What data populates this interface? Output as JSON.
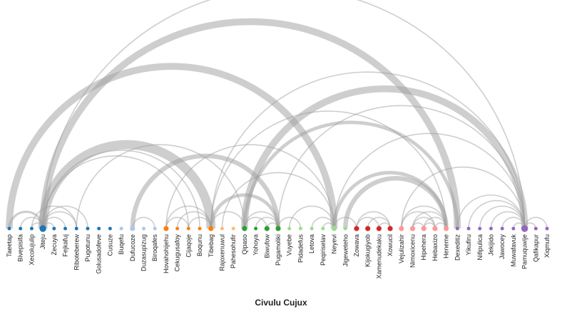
{
  "caption": "Civulu Cujux",
  "colors": {
    "link": "#9e9e9e",
    "group_blue": "#1f77b4",
    "group_lightblue": "#aec7e8",
    "group_orange": "#ff7f0e",
    "group_peach": "#ffbb78",
    "group_green": "#2ca02c",
    "group_lightgreen": "#98df8a",
    "group_red": "#d62728",
    "group_pink": "#ff9896",
    "group_purple": "#9467bd"
  },
  "nodes": [
    {
      "label": "Taeetap",
      "color": "group_blue",
      "size": 1
    },
    {
      "label": "Bivepisifa",
      "color": "group_blue",
      "size": 1
    },
    {
      "label": "Xecolujulip",
      "color": "group_blue",
      "size": 1
    },
    {
      "label": "Jiteju",
      "color": "group_blue",
      "size": 3
    },
    {
      "label": "Zecuya",
      "color": "group_blue",
      "size": 1
    },
    {
      "label": "Fejkafuj",
      "color": "group_blue",
      "size": 1
    },
    {
      "label": "Riboteberew",
      "color": "group_blue",
      "size": 1
    },
    {
      "label": "Pugotunu",
      "color": "group_blue",
      "size": 1
    },
    {
      "label": "Golusadofeve",
      "color": "group_blue",
      "size": 1
    },
    {
      "label": "Cusuze",
      "color": "group_blue",
      "size": 1
    },
    {
      "label": "Buqefu",
      "color": "group_lightblue",
      "size": 1
    },
    {
      "label": "Dufucoze",
      "color": "group_lightblue",
      "size": 2
    },
    {
      "label": "Duzasupizug",
      "color": "group_lightblue",
      "size": 1
    },
    {
      "label": "Biroqafes",
      "color": "group_lightblue",
      "size": 1
    },
    {
      "label": "Hovahohijehu",
      "color": "group_orange",
      "size": 2
    },
    {
      "label": "Cekugusafoy",
      "color": "group_orange",
      "size": 1
    },
    {
      "label": "Cijaqoje",
      "color": "group_orange",
      "size": 1
    },
    {
      "label": "Boqunu",
      "color": "group_orange",
      "size": 1
    },
    {
      "label": "Tibebag",
      "color": "group_orange",
      "size": 2
    },
    {
      "label": "Rajoxenuwul",
      "color": "group_peach",
      "size": 1
    },
    {
      "label": "Pahesohufir",
      "color": "group_peach",
      "size": 1
    },
    {
      "label": "Qipaso",
      "color": "group_green",
      "size": 2
    },
    {
      "label": "Yohoya",
      "color": "group_green",
      "size": 1
    },
    {
      "label": "Biwufow",
      "color": "group_green",
      "size": 2
    },
    {
      "label": "Pugamoliki",
      "color": "group_green",
      "size": 2
    },
    {
      "label": "Vuyebe",
      "color": "group_lightgreen",
      "size": 1
    },
    {
      "label": "Pidadefus",
      "color": "group_lightgreen",
      "size": 1
    },
    {
      "label": "Letova",
      "color": "group_lightgreen",
      "size": 1
    },
    {
      "label": "Peqiriselav",
      "color": "group_lightgreen",
      "size": 1
    },
    {
      "label": "Neyevi",
      "color": "group_lightgreen",
      "size": 2
    },
    {
      "label": "Jigeweteho",
      "color": "group_lightgreen",
      "size": 1
    },
    {
      "label": "Zowava",
      "color": "group_red",
      "size": 2
    },
    {
      "label": "Kijokugiyob",
      "color": "group_red",
      "size": 2
    },
    {
      "label": "Xamenudekaku",
      "color": "group_red",
      "size": 2
    },
    {
      "label": "Xowucil",
      "color": "group_red",
      "size": 2
    },
    {
      "label": "Vejulizahir",
      "color": "group_pink",
      "size": 2
    },
    {
      "label": "Nimoxicenu",
      "color": "group_pink",
      "size": 2
    },
    {
      "label": "Hipehera",
      "color": "group_pink",
      "size": 2
    },
    {
      "label": "Hebaxizo",
      "color": "group_pink",
      "size": 2
    },
    {
      "label": "Heneme",
      "color": "group_pink",
      "size": 2
    },
    {
      "label": "Dexeditiz",
      "color": "group_purple",
      "size": 1
    },
    {
      "label": "Yikufiru",
      "color": "group_purple",
      "size": 1
    },
    {
      "label": "Nifipulica",
      "color": "group_purple",
      "size": 1
    },
    {
      "label": "Jekijido",
      "color": "group_purple",
      "size": 1
    },
    {
      "label": "Jawocey",
      "color": "group_purple",
      "size": 1
    },
    {
      "label": "Muwafavuk",
      "color": "group_purple",
      "size": 1
    },
    {
      "label": "Pamuquwije",
      "color": "group_purple",
      "size": 3
    },
    {
      "label": "Qafikapur",
      "color": "group_purple",
      "size": 1
    },
    {
      "label": "Xiqmufu",
      "color": "group_purple",
      "size": 1
    }
  ],
  "links": [
    {
      "source": 3,
      "target": 46,
      "value": 1
    },
    {
      "source": 3,
      "target": 40,
      "value": 6
    },
    {
      "source": 0,
      "target": 29,
      "value": 6
    },
    {
      "source": 6,
      "target": 21,
      "value": 1
    },
    {
      "source": 3,
      "target": 18,
      "value": 8
    },
    {
      "source": 3,
      "target": 16,
      "value": 1
    },
    {
      "source": 3,
      "target": 17,
      "value": 1
    },
    {
      "source": 0,
      "target": 3,
      "value": 2
    },
    {
      "source": 1,
      "target": 3,
      "value": 1
    },
    {
      "source": 2,
      "target": 3,
      "value": 1
    },
    {
      "source": 3,
      "target": 4,
      "value": 1
    },
    {
      "source": 3,
      "target": 5,
      "value": 1
    },
    {
      "source": 3,
      "target": 6,
      "value": 1
    },
    {
      "source": 3,
      "target": 7,
      "value": 1
    },
    {
      "source": 2,
      "target": 6,
      "value": 1
    },
    {
      "source": 18,
      "target": 46,
      "value": 1
    },
    {
      "source": 21,
      "target": 46,
      "value": 6
    },
    {
      "source": 21,
      "target": 40,
      "value": 3
    },
    {
      "source": 24,
      "target": 46,
      "value": 1
    },
    {
      "source": 29,
      "target": 46,
      "value": 1
    },
    {
      "source": 35,
      "target": 46,
      "value": 1
    },
    {
      "source": 18,
      "target": 39,
      "value": 1
    },
    {
      "source": 11,
      "target": 24,
      "value": 4
    },
    {
      "source": 14,
      "target": 29,
      "value": 1
    },
    {
      "source": 11,
      "target": 13,
      "value": 1
    },
    {
      "source": 14,
      "target": 16,
      "value": 1
    },
    {
      "source": 15,
      "target": 18,
      "value": 1
    },
    {
      "source": 14,
      "target": 18,
      "value": 1
    },
    {
      "source": 16,
      "target": 18,
      "value": 1
    },
    {
      "source": 18,
      "target": 21,
      "value": 1
    },
    {
      "source": 18,
      "target": 24,
      "value": 3
    },
    {
      "source": 19,
      "target": 29,
      "value": 1
    },
    {
      "source": 21,
      "target": 24,
      "value": 1
    },
    {
      "source": 21,
      "target": 23,
      "value": 1
    },
    {
      "source": 22,
      "target": 24,
      "value": 1
    },
    {
      "source": 23,
      "target": 24,
      "value": 1
    },
    {
      "source": 24,
      "target": 26,
      "value": 1
    },
    {
      "source": 25,
      "target": 29,
      "value": 1
    },
    {
      "source": 27,
      "target": 29,
      "value": 1
    },
    {
      "source": 28,
      "target": 29,
      "value": 1
    },
    {
      "source": 29,
      "target": 31,
      "value": 1
    },
    {
      "source": 29,
      "target": 39,
      "value": 3
    },
    {
      "source": 30,
      "target": 39,
      "value": 4
    },
    {
      "source": 31,
      "target": 34,
      "value": 1
    },
    {
      "source": 32,
      "target": 34,
      "value": 1
    },
    {
      "source": 33,
      "target": 34,
      "value": 1
    },
    {
      "source": 31,
      "target": 33,
      "value": 1
    },
    {
      "source": 35,
      "target": 39,
      "value": 1
    },
    {
      "source": 36,
      "target": 39,
      "value": 1
    },
    {
      "source": 37,
      "target": 39,
      "value": 1
    },
    {
      "source": 38,
      "target": 39,
      "value": 1
    },
    {
      "source": 35,
      "target": 38,
      "value": 1
    },
    {
      "source": 36,
      "target": 38,
      "value": 1
    },
    {
      "source": 37,
      "target": 38,
      "value": 1
    },
    {
      "source": 36,
      "target": 37,
      "value": 1
    },
    {
      "source": 40,
      "target": 46,
      "value": 1
    },
    {
      "source": 41,
      "target": 46,
      "value": 1
    },
    {
      "source": 42,
      "target": 46,
      "value": 1
    },
    {
      "source": 43,
      "target": 46,
      "value": 1
    },
    {
      "source": 44,
      "target": 46,
      "value": 1
    },
    {
      "source": 45,
      "target": 46,
      "value": 1
    },
    {
      "source": 46,
      "target": 47,
      "value": 1
    },
    {
      "source": 46,
      "target": 48,
      "value": 1
    }
  ]
}
